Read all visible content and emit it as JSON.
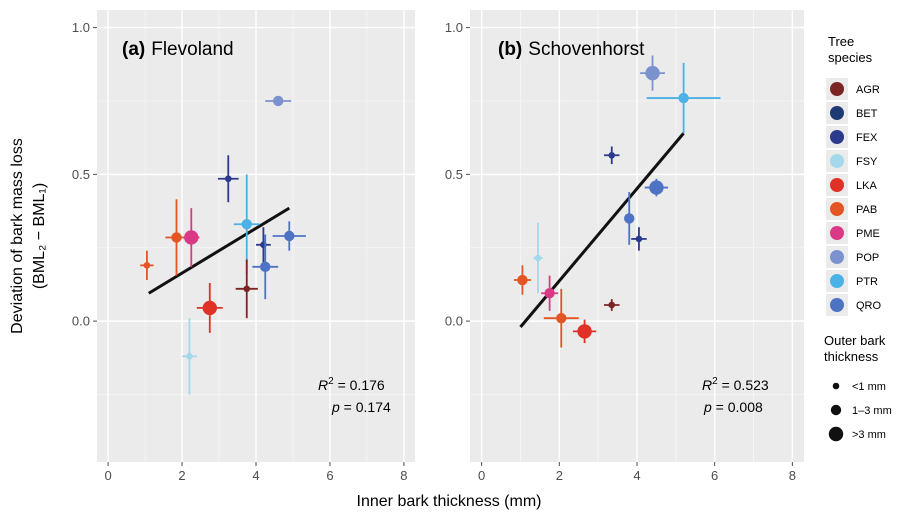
{
  "chart_data": [
    {
      "type": "scatter",
      "panel": "(a)",
      "title": "Flevoland",
      "xlabel": "Inner bark thickness (mm)",
      "ylabel": "Deviation of bark mass loss",
      "ylabel_line2": "(BML₂ − BML₁)",
      "xlim": [
        -0.3,
        8.3
      ],
      "ylim": [
        -0.48,
        1.06
      ],
      "xticks": [
        0,
        2,
        4,
        6,
        8
      ],
      "yticks": [
        0.0,
        0.5,
        1.0
      ],
      "ytick_labels": [
        "0.0",
        "0.5",
        "1.0"
      ],
      "grid": true,
      "stats": {
        "r2_label": "R",
        "r2_sup": "2",
        "r2_value": " = 0.176",
        "p_label": "p",
        "p_value": " = 0.174"
      },
      "regression": {
        "x": [
          1.1,
          4.9
        ],
        "y": [
          0.095,
          0.385
        ]
      },
      "points": [
        {
          "species": "PAB",
          "x": 1.05,
          "y": 0.19,
          "size": "<1 mm",
          "xerr": 0.18,
          "yerr": 0.05
        },
        {
          "species": "PAB",
          "x": 1.85,
          "y": 0.285,
          "size": "1–3 mm",
          "xerr": 0.3,
          "yerr": 0.13
        },
        {
          "species": "PME",
          "x": 2.25,
          "y": 0.285,
          "size": ">3 mm",
          "xerr": 0.22,
          "yerr": 0.1
        },
        {
          "species": "LKA",
          "x": 2.75,
          "y": 0.045,
          "size": ">3 mm",
          "xerr": 0.35,
          "yerr": 0.085
        },
        {
          "species": "FSY",
          "x": 2.2,
          "y": -0.12,
          "size": "<1 mm",
          "xerr": 0.2,
          "yerr": 0.13
        },
        {
          "species": "FEX",
          "x": 3.25,
          "y": 0.485,
          "size": "<1 mm",
          "xerr": 0.28,
          "yerr": 0.08
        },
        {
          "species": "PTR",
          "x": 3.75,
          "y": 0.33,
          "size": "1–3 mm",
          "xerr": 0.35,
          "yerr": 0.17
        },
        {
          "species": "AGR",
          "x": 3.75,
          "y": 0.11,
          "size": "<1 mm",
          "xerr": 0.3,
          "yerr": 0.1
        },
        {
          "species": "FEX",
          "x": 4.2,
          "y": 0.26,
          "size": "<1 mm",
          "xerr": 0.2,
          "yerr": 0.06
        },
        {
          "species": "QRO",
          "x": 4.25,
          "y": 0.185,
          "size": "1–3 mm",
          "xerr": 0.35,
          "yerr": 0.11
        },
        {
          "species": "QRO",
          "x": 4.9,
          "y": 0.29,
          "size": "1–3 mm",
          "xerr": 0.45,
          "yerr": 0.05
        },
        {
          "species": "POP",
          "x": 4.6,
          "y": 0.75,
          "size": "1–3 mm",
          "xerr": 0.35,
          "yerr": 0.01
        }
      ]
    },
    {
      "type": "scatter",
      "panel": "(b)",
      "title": "Schovenhorst",
      "xlabel": "Inner bark thickness (mm)",
      "xlim": [
        -0.3,
        8.3
      ],
      "ylim": [
        -0.48,
        1.06
      ],
      "xticks": [
        0,
        2,
        4,
        6,
        8
      ],
      "yticks": [
        0.0,
        0.5,
        1.0
      ],
      "ytick_labels": [
        "0.0",
        "0.5",
        "1.0"
      ],
      "grid": true,
      "stats": {
        "r2_label": "R",
        "r2_sup": "2",
        "r2_value": " = 0.523",
        "p_label": "p",
        "p_value": " = 0.008"
      },
      "regression": {
        "x": [
          1.0,
          5.2
        ],
        "y": [
          -0.02,
          0.64
        ]
      },
      "points": [
        {
          "species": "PAB",
          "x": 1.05,
          "y": 0.14,
          "size": "1–3 mm",
          "xerr": 0.22,
          "yerr": 0.05
        },
        {
          "species": "FSY",
          "x": 1.45,
          "y": 0.215,
          "size": "<1 mm",
          "xerr": 0.12,
          "yerr": 0.12
        },
        {
          "species": "PME",
          "x": 1.75,
          "y": 0.095,
          "size": "1–3 mm",
          "xerr": 0.22,
          "yerr": 0.06
        },
        {
          "species": "PAB",
          "x": 2.05,
          "y": 0.01,
          "size": "1–3 mm",
          "xerr": 0.45,
          "yerr": 0.1
        },
        {
          "species": "LKA",
          "x": 2.65,
          "y": -0.035,
          "size": ">3 mm",
          "xerr": 0.3,
          "yerr": 0.04
        },
        {
          "species": "AGR",
          "x": 3.35,
          "y": 0.055,
          "size": "<1 mm",
          "xerr": 0.2,
          "yerr": 0.02
        },
        {
          "species": "FEX",
          "x": 3.35,
          "y": 0.565,
          "size": "<1 mm",
          "xerr": 0.2,
          "yerr": 0.03
        },
        {
          "species": "QRO",
          "x": 3.8,
          "y": 0.35,
          "size": "1–3 mm",
          "xerr": 0.1,
          "yerr": 0.09
        },
        {
          "species": "FEX",
          "x": 4.05,
          "y": 0.28,
          "size": "<1 mm",
          "xerr": 0.2,
          "yerr": 0.04
        },
        {
          "species": "QRO",
          "x": 4.5,
          "y": 0.455,
          "size": ">3 mm",
          "xerr": 0.3,
          "yerr": 0.03
        },
        {
          "species": "POP",
          "x": 4.4,
          "y": 0.845,
          "size": ">3 mm",
          "xerr": 0.32,
          "yerr": 0.06
        },
        {
          "species": "PTR",
          "x": 5.2,
          "y": 0.76,
          "size": "1–3 mm",
          "xerr": 0.95,
          "yerr": 0.12
        }
      ]
    }
  ],
  "legend": {
    "species_title_line1": "Tree",
    "species_title_line2": "species",
    "species": [
      {
        "code": "AGR",
        "color": "#7b2423"
      },
      {
        "code": "BET",
        "color": "#1f3a72"
      },
      {
        "code": "FEX",
        "color": "#2b3a8c"
      },
      {
        "code": "FSY",
        "color": "#a6d8ec"
      },
      {
        "code": "LKA",
        "color": "#e03127"
      },
      {
        "code": "PAB",
        "color": "#e45524"
      },
      {
        "code": "PME",
        "color": "#da3a85"
      },
      {
        "code": "POP",
        "color": "#7c92cf"
      },
      {
        "code": "PTR",
        "color": "#4cb1e6"
      },
      {
        "code": "QRO",
        "color": "#4f73c4"
      }
    ],
    "size_title_line1": "Outer bark",
    "size_title_line2": "thickness",
    "sizes": [
      {
        "label": "<1 mm"
      },
      {
        "label": "1–3 mm"
      },
      {
        "label": ">3 mm"
      }
    ]
  }
}
